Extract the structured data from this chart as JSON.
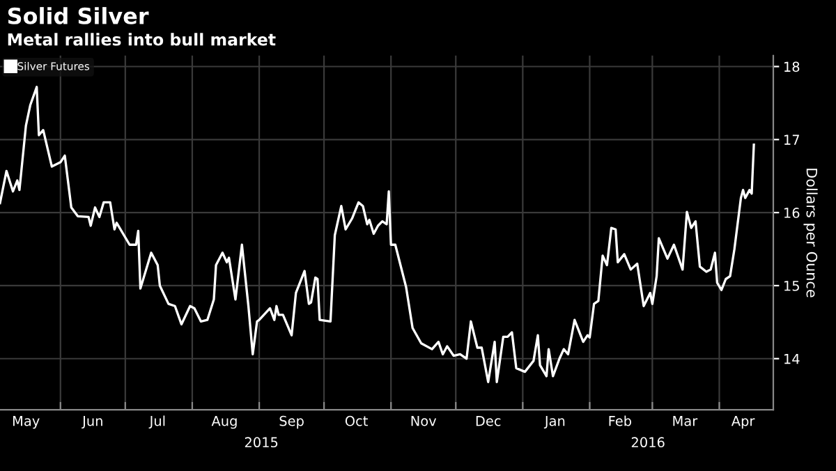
{
  "chart_data": {
    "type": "line",
    "title": "Solid Silver",
    "subtitle": "Metal rallies into bull market",
    "ylabel": "Dollars per Ounce",
    "x": [
      "2015-05-04",
      "2015-05-07",
      "2015-05-10",
      "2015-05-12",
      "2015-05-13",
      "2015-05-16",
      "2015-05-18",
      "2015-05-21",
      "2015-05-22",
      "2015-05-24",
      "2015-05-28",
      "2015-06-01",
      "2015-06-03",
      "2015-06-06",
      "2015-06-09",
      "2015-06-14",
      "2015-06-15",
      "2015-06-17",
      "2015-06-19",
      "2015-06-21",
      "2015-06-24",
      "2015-06-26",
      "2015-06-27",
      "2015-07-03",
      "2015-07-06",
      "2015-07-07",
      "2015-07-08",
      "2015-07-13",
      "2015-07-16",
      "2015-07-17",
      "2015-07-21",
      "2015-07-24",
      "2015-07-27",
      "2015-07-31",
      "2015-08-02",
      "2015-08-05",
      "2015-08-08",
      "2015-08-11",
      "2015-08-12",
      "2015-08-15",
      "2015-08-17",
      "2015-08-18",
      "2015-08-21",
      "2015-08-24",
      "2015-08-27",
      "2015-08-29",
      "2015-08-31",
      "2015-09-01",
      "2015-09-06",
      "2015-09-08",
      "2015-09-09",
      "2015-09-10",
      "2015-09-12",
      "2015-09-16",
      "2015-09-18",
      "2015-09-22",
      "2015-09-24",
      "2015-09-25",
      "2015-09-27",
      "2015-09-28",
      "2015-09-29",
      "2015-10-04",
      "2015-10-06",
      "2015-10-09",
      "2015-10-11",
      "2015-10-14",
      "2015-10-17",
      "2015-10-19",
      "2015-10-21",
      "2015-10-22",
      "2015-10-24",
      "2015-10-26",
      "2015-10-28",
      "2015-10-30",
      "2015-10-31",
      "2015-11-01",
      "2015-11-03",
      "2015-11-08",
      "2015-11-11",
      "2015-11-15",
      "2015-11-20",
      "2015-11-23",
      "2015-11-25",
      "2015-11-27",
      "2015-11-30",
      "2015-12-03",
      "2015-12-06",
      "2015-12-08",
      "2015-12-11",
      "2015-12-13",
      "2015-12-16",
      "2015-12-19",
      "2015-12-20",
      "2015-12-23",
      "2015-12-25",
      "2015-12-27",
      "2015-12-29",
      "2016-01-02",
      "2016-01-06",
      "2016-01-08",
      "2016-01-09",
      "2016-01-12",
      "2016-01-13",
      "2016-01-15",
      "2016-01-18",
      "2016-01-20",
      "2016-01-22",
      "2016-01-25",
      "2016-01-29",
      "2016-01-31",
      "2016-02-01",
      "2016-02-03",
      "2016-02-05",
      "2016-02-07",
      "2016-02-09",
      "2016-02-11",
      "2016-02-13",
      "2016-02-14",
      "2016-02-17",
      "2016-02-20",
      "2016-02-23",
      "2016-02-26",
      "2016-02-29",
      "2016-03-01",
      "2016-03-03",
      "2016-03-04",
      "2016-03-08",
      "2016-03-11",
      "2016-03-15",
      "2016-03-17",
      "2016-03-19",
      "2016-03-21",
      "2016-03-23",
      "2016-03-26",
      "2016-03-28",
      "2016-03-30",
      "2016-03-31",
      "2016-04-02",
      "2016-04-04",
      "2016-04-06",
      "2016-04-08",
      "2016-04-11",
      "2016-04-12",
      "2016-04-13",
      "2016-04-15",
      "2016-04-16",
      "2016-04-17"
    ],
    "series": [
      {
        "name": "Silver Futures",
        "color": "#ffffff",
        "values": [
          16.13,
          16.57,
          16.29,
          16.44,
          16.31,
          17.19,
          17.47,
          17.72,
          17.06,
          17.13,
          16.63,
          16.69,
          16.78,
          16.07,
          15.95,
          15.94,
          15.82,
          16.07,
          15.94,
          16.14,
          16.14,
          15.77,
          15.86,
          15.56,
          15.56,
          15.75,
          14.96,
          15.45,
          15.28,
          15.0,
          14.75,
          14.72,
          14.47,
          14.72,
          14.69,
          14.51,
          14.53,
          14.81,
          15.28,
          15.45,
          15.32,
          15.38,
          14.81,
          15.56,
          14.72,
          14.06,
          14.51,
          14.53,
          14.69,
          14.53,
          14.72,
          14.6,
          14.6,
          14.32,
          14.9,
          15.2,
          14.75,
          14.77,
          15.11,
          15.09,
          14.53,
          14.51,
          15.69,
          16.09,
          15.77,
          15.92,
          16.14,
          16.09,
          15.84,
          15.9,
          15.71,
          15.82,
          15.88,
          15.84,
          16.29,
          15.56,
          15.56,
          14.98,
          14.42,
          14.21,
          14.13,
          14.23,
          14.06,
          14.17,
          14.04,
          14.06,
          14.0,
          14.51,
          14.15,
          14.15,
          13.68,
          14.23,
          13.68,
          14.3,
          14.3,
          14.36,
          13.87,
          13.82,
          13.97,
          14.32,
          13.91,
          13.76,
          14.13,
          13.76,
          14.0,
          14.13,
          14.06,
          14.53,
          14.23,
          14.32,
          14.29,
          14.75,
          14.79,
          15.41,
          15.28,
          15.79,
          15.77,
          15.32,
          15.43,
          15.22,
          15.3,
          14.72,
          14.9,
          14.75,
          15.13,
          15.65,
          15.37,
          15.56,
          15.22,
          16.01,
          15.79,
          15.88,
          15.26,
          15.19,
          15.22,
          15.45,
          15.04,
          14.94,
          15.09,
          15.13,
          15.5,
          16.2,
          16.31,
          16.2,
          16.31,
          16.26,
          16.93
        ]
      }
    ],
    "xlim": [
      "2015-05-04",
      "2016-04-26"
    ],
    "xticks": [
      {
        "value": "2015-06-01",
        "label": null
      },
      {
        "value": "2015-07-01",
        "label": null
      },
      {
        "value": "2015-08-01",
        "label": null
      },
      {
        "value": "2015-09-01",
        "label": null
      },
      {
        "value": "2015-10-01",
        "label": null
      },
      {
        "value": "2015-11-01",
        "label": null
      },
      {
        "value": "2015-12-01",
        "label": null
      },
      {
        "value": "2016-01-01",
        "label": null
      },
      {
        "value": "2016-02-01",
        "label": null
      },
      {
        "value": "2016-03-01",
        "label": null
      },
      {
        "value": "2016-04-01",
        "label": null
      },
      {
        "value": "2015-05-16",
        "label": "May"
      },
      {
        "value": "2015-06-16",
        "label": "Jun"
      },
      {
        "value": "2015-07-16",
        "label": "Jul"
      },
      {
        "value": "2015-08-16",
        "label": "Aug"
      },
      {
        "value": "2015-09-16",
        "label": "Sep"
      },
      {
        "value": "2015-10-16",
        "label": "Oct"
      },
      {
        "value": "2015-11-16",
        "label": "Nov"
      },
      {
        "value": "2015-12-16",
        "label": "Dec"
      },
      {
        "value": "2016-01-16",
        "label": "Jan"
      },
      {
        "value": "2016-02-15",
        "label": "Feb"
      },
      {
        "value": "2016-03-16",
        "label": "Mar"
      },
      {
        "value": "2016-04-12",
        "label": "Apr"
      }
    ],
    "ylim": [
      13.3,
      18.15
    ],
    "yticks": [
      14,
      15,
      16,
      17,
      18
    ],
    "annotations": [
      "2015",
      "2016"
    ],
    "grid": true,
    "legend": "top left",
    "marker": "none",
    "line_style": "solid"
  }
}
